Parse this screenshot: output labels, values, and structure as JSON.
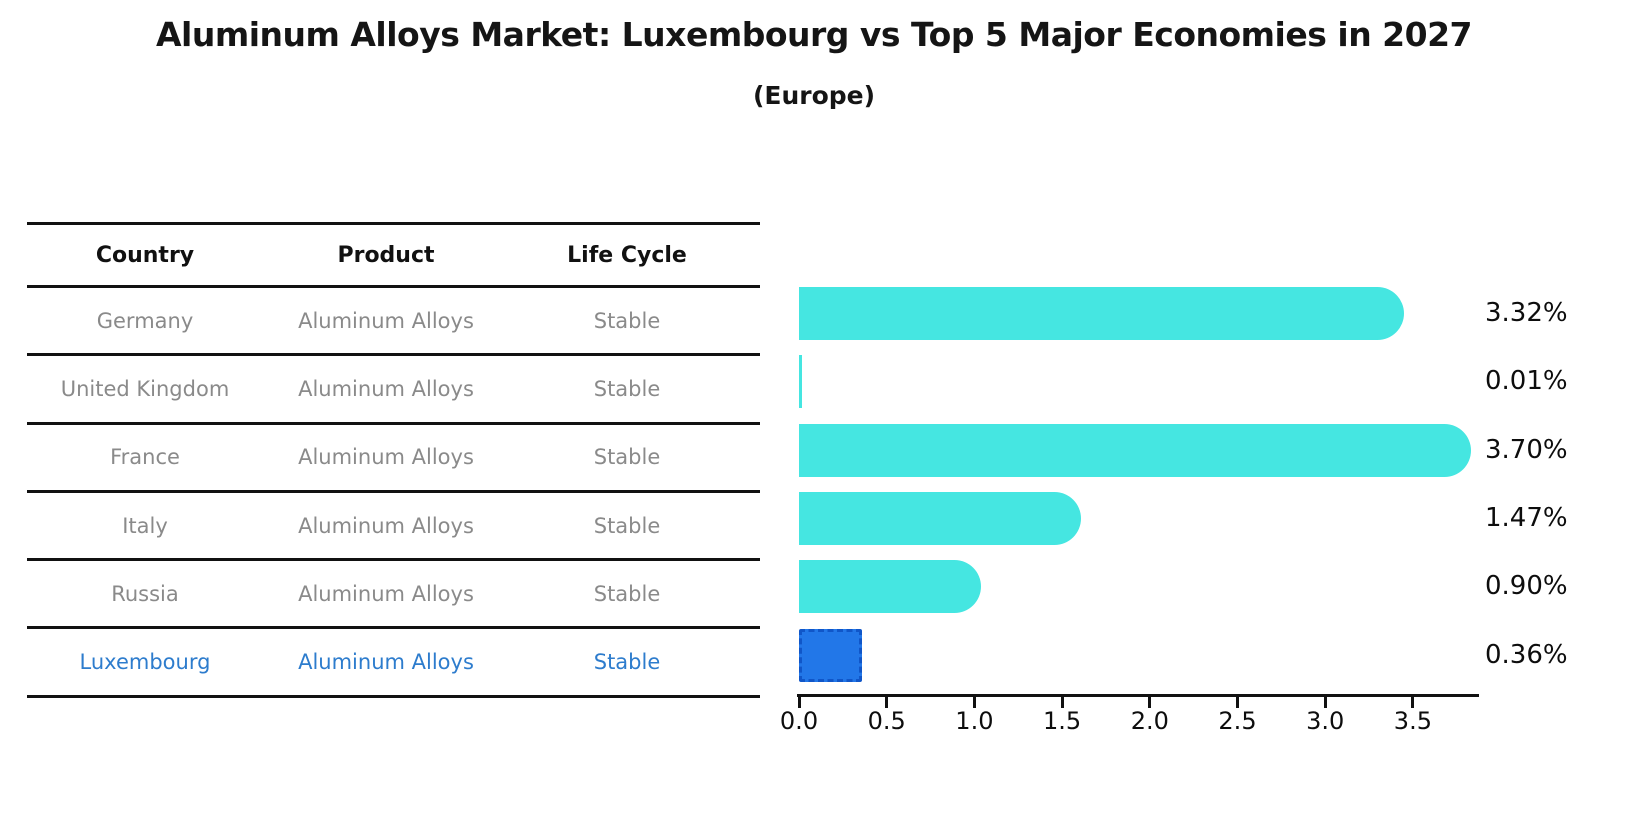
{
  "title": "Aluminum Alloys Market: Luxembourg vs Top 5 Major Economies in 2027",
  "subtitle": "(Europe)",
  "table": {
    "headers": {
      "country": "Country",
      "product": "Product",
      "life_cycle": "Life Cycle"
    },
    "rows": [
      {
        "country": "Germany",
        "product": "Aluminum Alloys",
        "life_cycle": "Stable",
        "highlight": false
      },
      {
        "country": "United Kingdom",
        "product": "Aluminum Alloys",
        "life_cycle": "Stable",
        "highlight": false
      },
      {
        "country": "France",
        "product": "Aluminum Alloys",
        "life_cycle": "Stable",
        "highlight": false
      },
      {
        "country": "Italy",
        "product": "Aluminum Alloys",
        "life_cycle": "Stable",
        "highlight": false
      },
      {
        "country": "Russia",
        "product": "Aluminum Alloys",
        "life_cycle": "Stable",
        "highlight": true
      }
    ]
  },
  "luxembourg_row": {
    "country": "Luxembourg",
    "product": "Aluminum Alloys",
    "life_cycle": "Stable"
  },
  "chart_data": {
    "type": "bar",
    "orientation": "horizontal",
    "title": "Aluminum Alloys Market: Luxembourg vs Top 5 Major Economies in 2027",
    "subtitle": "(Europe)",
    "categories": [
      "Germany",
      "United Kingdom",
      "France",
      "Italy",
      "Russia",
      "Luxembourg"
    ],
    "values": [
      3.32,
      0.01,
      3.7,
      1.47,
      0.9,
      0.36
    ],
    "value_labels": [
      "3.32%",
      "0.01%",
      "3.70%",
      "1.47%",
      "0.90%",
      "0.36%"
    ],
    "unit": "%",
    "x_tick_labels": [
      "0.0",
      "0.5",
      "1.0",
      "1.5",
      "2.0",
      "2.5",
      "3.0",
      "3.5"
    ],
    "xlim": [
      0,
      3.88
    ],
    "grid": false,
    "legend": "none",
    "bar_color": "#45e6e1",
    "highlight_index": 5,
    "highlight_color": "#2277e8",
    "highlight_border_color": "#1056c8",
    "label_color": "#0d0d0d",
    "table_text_color": "#8a8a8a",
    "highlight_text_color": "#2d7ccd"
  }
}
